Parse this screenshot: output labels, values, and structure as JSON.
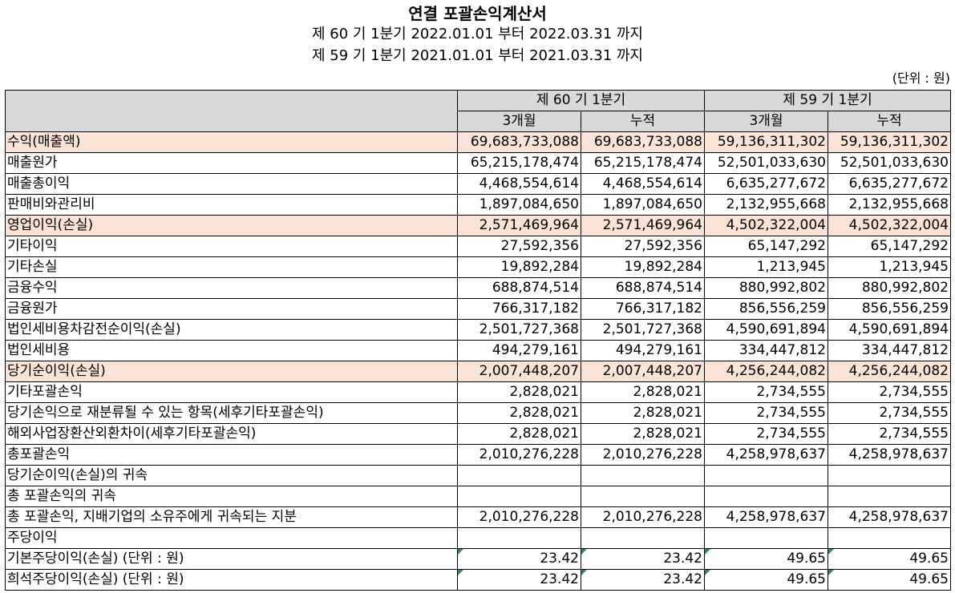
{
  "title": "연결 포괄손익계산서",
  "period_current": "제 60 기 1분기 2022.01.01 부터 2022.03.31 까지",
  "period_prior": "제 59 기 1분기 2021.01.01 부터 2021.03.31 까지",
  "unit": "(단위 : 원)",
  "columns": {
    "current": "제 60 기 1분기",
    "prior": "제 59 기 1분기",
    "three_month": "3개월",
    "cumulative": "누적"
  },
  "rows": [
    {
      "label": "수익(매출액)",
      "v": [
        "69,683,733,088",
        "69,683,733,088",
        "59,136,311,302",
        "59,136,311,302"
      ],
      "highlight": true
    },
    {
      "label": "매출원가",
      "v": [
        "65,215,178,474",
        "65,215,178,474",
        "52,501,033,630",
        "52,501,033,630"
      ]
    },
    {
      "label": "매출총이익",
      "v": [
        "4,468,554,614",
        "4,468,554,614",
        "6,635,277,672",
        "6,635,277,672"
      ]
    },
    {
      "label": "판매비와관리비",
      "v": [
        "1,897,084,650",
        "1,897,084,650",
        "2,132,955,668",
        "2,132,955,668"
      ]
    },
    {
      "label": "영업이익(손실)",
      "v": [
        "2,571,469,964",
        "2,571,469,964",
        "4,502,322,004",
        "4,502,322,004"
      ],
      "highlight": true
    },
    {
      "label": "기타이익",
      "v": [
        "27,592,356",
        "27,592,356",
        "65,147,292",
        "65,147,292"
      ]
    },
    {
      "label": "기타손실",
      "v": [
        "19,892,284",
        "19,892,284",
        "1,213,945",
        "1,213,945"
      ]
    },
    {
      "label": "금융수익",
      "v": [
        "688,874,514",
        "688,874,514",
        "880,992,802",
        "880,992,802"
      ]
    },
    {
      "label": "금융원가",
      "v": [
        "766,317,182",
        "766,317,182",
        "856,556,259",
        "856,556,259"
      ]
    },
    {
      "label": "법인세비용차감전순이익(손실)",
      "v": [
        "2,501,727,368",
        "2,501,727,368",
        "4,590,691,894",
        "4,590,691,894"
      ]
    },
    {
      "label": "법인세비용",
      "v": [
        "494,279,161",
        "494,279,161",
        "334,447,812",
        "334,447,812"
      ]
    },
    {
      "label": "당기순이익(손실)",
      "v": [
        "2,007,448,207",
        "2,007,448,207",
        "4,256,244,082",
        "4,256,244,082"
      ],
      "highlight": true
    },
    {
      "label": "기타포괄손익",
      "v": [
        "2,828,021",
        "2,828,021",
        "2,734,555",
        "2,734,555"
      ]
    },
    {
      "label": "당기손익으로 재분류될 수 있는 항목(세후기타포괄손익)",
      "v": [
        "2,828,021",
        "2,828,021",
        "2,734,555",
        "2,734,555"
      ],
      "indent": 1
    },
    {
      "label": "해외사업장환산외환차이(세후기타포괄손익)",
      "v": [
        "2,828,021",
        "2,828,021",
        "2,734,555",
        "2,734,555"
      ],
      "indent": 2
    },
    {
      "label": "총포괄손익",
      "v": [
        "2,010,276,228",
        "2,010,276,228",
        "4,258,978,637",
        "4,258,978,637"
      ]
    },
    {
      "label": "당기순이익(손실)의 귀속",
      "v": [
        "",
        "",
        "",
        ""
      ]
    },
    {
      "label": "총 포괄손익의 귀속",
      "v": [
        "",
        "",
        "",
        ""
      ]
    },
    {
      "label": "총 포괄손익, 지배기업의 소유주에게 귀속되는 지분",
      "v": [
        "2,010,276,228",
        "2,010,276,228",
        "4,258,978,637",
        "4,258,978,637"
      ],
      "indent": 1
    },
    {
      "label": "주당이익",
      "v": [
        "",
        "",
        "",
        ""
      ]
    },
    {
      "label": "기본주당이익(손실) (단위 : 원)",
      "v": [
        "23.42",
        "23.42",
        "49.65",
        "49.65"
      ],
      "indent": 1,
      "marker": true
    },
    {
      "label": "희석주당이익(손실) (단위 : 원)",
      "v": [
        "23.42",
        "23.42",
        "49.65",
        "49.65"
      ],
      "indent": 1,
      "marker": true
    }
  ]
}
